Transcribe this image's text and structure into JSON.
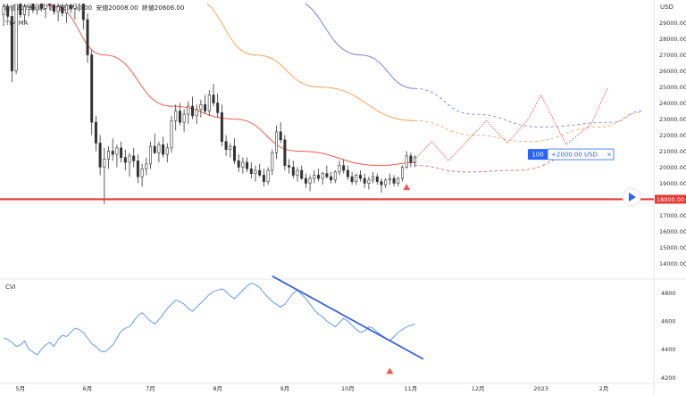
{
  "ohlc": {
    "open": "始値20295.00",
    "high": "高値20750.00",
    "low": "安値20008.00",
    "close": "終値20606.00"
  },
  "ma_label": "TIM MA",
  "cvi_label": "CVI",
  "currency": "USD",
  "position_tag": {
    "qty": "100",
    "value": "+2000.00 USD",
    "close": "×"
  },
  "support_label": "18000.00",
  "colors": {
    "up": "#333333",
    "down": "#333333",
    "ma_red": "#f05b4f",
    "ma_orange": "#f7a35c",
    "ma_blue": "#7b7fe0",
    "support": "#e53935",
    "cvi": "#4f8ef7",
    "trendline": "#3b5fd9",
    "marker": "#f05b4f",
    "tag_blue": "#2962ff"
  },
  "chart_data": {
    "type": "candlestick",
    "x_ticks": [
      "5月",
      "6月",
      "7月",
      "8月",
      "9月",
      "10月",
      "11月",
      "12月",
      "2023",
      "2月"
    ],
    "price_axis": {
      "ticks": [
        14000,
        15000,
        16000,
        17000,
        18000,
        19000,
        20000,
        21000,
        22000,
        23000,
        24000,
        25000,
        26000,
        27000,
        28000,
        29000
      ],
      "labels": [
        "14000.00",
        "15000.00",
        "16000.00",
        "17000.00",
        "18000.00",
        "19000.00",
        "20000.00",
        "21000.00",
        "22000.00",
        "23000.00",
        "24000.00",
        "25000.00",
        "26000.00",
        "27000.00",
        "28000.00",
        "29000.00"
      ],
      "ylim": [
        13300,
        30200
      ]
    },
    "support_level": 18000,
    "candles": [
      [
        0,
        29500,
        30500,
        28800,
        30000
      ],
      [
        1,
        30000,
        30600,
        29200,
        29400
      ],
      [
        2,
        29400,
        29800,
        25300,
        26000
      ],
      [
        3,
        26000,
        30400,
        25800,
        30200
      ],
      [
        4,
        30200,
        30800,
        29300,
        29500
      ],
      [
        5,
        29500,
        30200,
        29000,
        30000
      ],
      [
        6,
        30000,
        30900,
        29400,
        30400
      ],
      [
        7,
        30400,
        30700,
        29600,
        29800
      ],
      [
        8,
        29800,
        30800,
        29500,
        30600
      ],
      [
        9,
        30600,
        30900,
        29700,
        29900
      ],
      [
        10,
        29900,
        30600,
        29300,
        30300
      ],
      [
        11,
        30300,
        30800,
        29800,
        30100
      ],
      [
        12,
        30100,
        30700,
        29500,
        29700
      ],
      [
        13,
        29700,
        30400,
        29100,
        30000
      ],
      [
        14,
        30000,
        30600,
        29400,
        29600
      ],
      [
        15,
        29600,
        30300,
        29000,
        30100
      ],
      [
        16,
        30100,
        30700,
        29600,
        29900
      ],
      [
        17,
        29900,
        30500,
        29200,
        30200
      ],
      [
        18,
        30200,
        30900,
        29700,
        30400
      ],
      [
        19,
        30400,
        30800,
        28600,
        29200
      ],
      [
        20,
        29200,
        29600,
        26500,
        27000
      ],
      [
        21,
        27000,
        27300,
        22000,
        22800
      ],
      [
        22,
        22800,
        23200,
        21000,
        21500
      ],
      [
        23,
        21500,
        22000,
        19500,
        20000
      ],
      [
        24,
        20000,
        21200,
        17700,
        20500
      ],
      [
        25,
        20500,
        21300,
        19900,
        21000
      ],
      [
        26,
        21000,
        21800,
        20400,
        20800
      ],
      [
        27,
        20800,
        21400,
        20000,
        21200
      ],
      [
        28,
        21200,
        21600,
        20300,
        20600
      ],
      [
        29,
        20600,
        21100,
        19800,
        20300
      ],
      [
        30,
        20300,
        20900,
        19400,
        20700
      ],
      [
        31,
        20700,
        21200,
        20000,
        20400
      ],
      [
        32,
        20400,
        20800,
        19000,
        19400
      ],
      [
        33,
        19400,
        20200,
        18800,
        19900
      ],
      [
        34,
        19900,
        20600,
        19500,
        20200
      ],
      [
        35,
        20200,
        21600,
        19900,
        21300
      ],
      [
        36,
        21300,
        22100,
        20800,
        20900
      ],
      [
        37,
        20900,
        21600,
        20300,
        21400
      ],
      [
        38,
        21400,
        21900,
        20600,
        20800
      ],
      [
        39,
        20800,
        21500,
        20300,
        21200
      ],
      [
        40,
        21200,
        23200,
        20900,
        22900
      ],
      [
        41,
        22900,
        23900,
        22300,
        23500
      ],
      [
        42,
        23500,
        24000,
        22600,
        22800
      ],
      [
        43,
        22800,
        23600,
        22200,
        23300
      ],
      [
        44,
        23300,
        24100,
        22700,
        23800
      ],
      [
        45,
        23800,
        24400,
        23000,
        23200
      ],
      [
        46,
        23200,
        23900,
        22700,
        23600
      ],
      [
        47,
        23600,
        24200,
        23100,
        23900
      ],
      [
        48,
        23900,
        24500,
        23300,
        23500
      ],
      [
        49,
        23500,
        24800,
        23200,
        24500
      ],
      [
        50,
        24500,
        25200,
        23800,
        24000
      ],
      [
        51,
        24000,
        24600,
        23100,
        23400
      ],
      [
        52,
        23400,
        23900,
        21300,
        21600
      ],
      [
        53,
        21600,
        22000,
        20700,
        21100
      ],
      [
        54,
        21100,
        21500,
        20600,
        21300
      ],
      [
        55,
        21300,
        21800,
        20200,
        20400
      ],
      [
        56,
        20400,
        20800,
        19700,
        20000
      ],
      [
        57,
        20000,
        20600,
        19600,
        20300
      ],
      [
        58,
        20300,
        20600,
        19700,
        19900
      ],
      [
        59,
        19900,
        20300,
        19300,
        19600
      ],
      [
        60,
        19600,
        20100,
        19100,
        19800
      ],
      [
        61,
        19800,
        20200,
        19400,
        19500
      ],
      [
        62,
        19500,
        19900,
        18800,
        19100
      ],
      [
        63,
        19100,
        20000,
        18900,
        19800
      ],
      [
        64,
        19800,
        21100,
        19500,
        20900
      ],
      [
        65,
        20900,
        22600,
        20500,
        22200
      ],
      [
        66,
        22200,
        22800,
        21500,
        21700
      ],
      [
        67,
        21700,
        22000,
        19800,
        20100
      ],
      [
        68,
        20100,
        20500,
        19600,
        20000
      ],
      [
        69,
        20000,
        20400,
        19300,
        19500
      ],
      [
        70,
        19500,
        20000,
        19100,
        19800
      ],
      [
        71,
        19800,
        20100,
        19200,
        19300
      ],
      [
        72,
        19300,
        19600,
        18700,
        19000
      ],
      [
        73,
        19000,
        19500,
        18500,
        19300
      ],
      [
        74,
        19300,
        19800,
        19000,
        19500
      ],
      [
        75,
        19500,
        19900,
        19100,
        19300
      ],
      [
        76,
        19300,
        19700,
        18900,
        19600
      ],
      [
        77,
        19600,
        20100,
        19300,
        19400
      ],
      [
        78,
        19400,
        19700,
        19000,
        19200
      ],
      [
        79,
        19200,
        19800,
        19000,
        19700
      ],
      [
        80,
        19700,
        20400,
        19500,
        20100
      ],
      [
        81,
        20100,
        20500,
        19600,
        19800
      ],
      [
        82,
        19800,
        20100,
        19200,
        19400
      ],
      [
        83,
        19400,
        19700,
        18900,
        19100
      ],
      [
        84,
        19100,
        19600,
        18900,
        19500
      ],
      [
        85,
        19500,
        19800,
        19100,
        19300
      ],
      [
        86,
        19300,
        19600,
        18700,
        19000
      ],
      [
        87,
        19000,
        19400,
        18600,
        19200
      ],
      [
        88,
        19200,
        19700,
        19000,
        19400
      ],
      [
        89,
        19400,
        19600,
        18900,
        19100
      ],
      [
        90,
        19100,
        19300,
        18400,
        18900
      ],
      [
        91,
        18900,
        19300,
        18700,
        19200
      ],
      [
        92,
        19200,
        19600,
        18900,
        19300
      ],
      [
        93,
        19300,
        19500,
        18800,
        19000
      ],
      [
        94,
        19000,
        19400,
        18800,
        19300
      ],
      [
        95,
        19300,
        20100,
        19100,
        20000
      ],
      [
        96,
        20000,
        21000,
        19900,
        20700
      ],
      [
        97,
        20700,
        20900,
        20000,
        20300
      ],
      [
        98,
        20300,
        20750,
        20008,
        20606
      ]
    ],
    "ma_red": [
      [
        1,
        32000
      ],
      [
        12,
        30000
      ],
      [
        24,
        27000
      ],
      [
        40,
        23800
      ],
      [
        55,
        23000
      ],
      [
        70,
        21000
      ],
      [
        90,
        20100
      ],
      [
        98,
        20300
      ]
    ],
    "ma_orange": [
      [
        45,
        30500
      ],
      [
        60,
        27000
      ],
      [
        75,
        25000
      ],
      [
        98,
        22900
      ]
    ],
    "ma_blue": [
      [
        68,
        30500
      ],
      [
        85,
        27000
      ],
      [
        98,
        24900
      ]
    ],
    "projections": {
      "red_dashed": [
        [
          98,
          20100
        ],
        [
          110,
          19700
        ],
        [
          122,
          19800
        ],
        [
          140,
          21100
        ]
      ],
      "orange_dashed": [
        [
          98,
          22900
        ],
        [
          112,
          22000
        ],
        [
          125,
          21600
        ],
        [
          142,
          22500
        ],
        [
          152,
          23400
        ]
      ],
      "blue_dashed": [
        [
          98,
          24900
        ],
        [
          112,
          23300
        ],
        [
          128,
          22500
        ],
        [
          145,
          22800
        ],
        [
          152,
          23500
        ]
      ],
      "red_dotted_path": [
        [
          98,
          20500
        ],
        [
          102,
          21600
        ],
        [
          106,
          20400
        ],
        [
          115,
          22900
        ],
        [
          120,
          21500
        ],
        [
          125,
          23000
        ],
        [
          128,
          24500
        ],
        [
          134,
          21400
        ],
        [
          140,
          22700
        ],
        [
          144,
          25000
        ]
      ]
    },
    "cvi": {
      "ticks": [
        4200,
        4400,
        4600,
        4800
      ],
      "labels": [
        "4200",
        "4400",
        "4600",
        "4800"
      ],
      "ylim": [
        4170,
        4880
      ],
      "values": [
        4480,
        4470,
        4450,
        4420,
        4430,
        4460,
        4400,
        4380,
        4360,
        4400,
        4430,
        4450,
        4420,
        4470,
        4500,
        4490,
        4520,
        4550,
        4540,
        4520,
        4480,
        4440,
        4420,
        4390,
        4380,
        4400,
        4430,
        4480,
        4530,
        4550,
        4560,
        4600,
        4640,
        4660,
        4630,
        4600,
        4580,
        4610,
        4650,
        4690,
        4720,
        4750,
        4740,
        4720,
        4690,
        4670,
        4700,
        4730,
        4760,
        4790,
        4810,
        4820,
        4830,
        4810,
        4780,
        4760,
        4790,
        4820,
        4850,
        4870,
        4860,
        4840,
        4800,
        4770,
        4740,
        4720,
        4700,
        4720,
        4760,
        4800,
        4820,
        4790,
        4760,
        4720,
        4680,
        4650,
        4630,
        4600,
        4580,
        4560,
        4590,
        4620,
        4600,
        4570,
        4540,
        4520,
        4530,
        4560,
        4550,
        4520,
        4500,
        4480,
        4460,
        4490,
        4520,
        4540,
        4560,
        4570,
        4580
      ],
      "trendline": [
        [
          64,
          4920
        ],
        [
          100,
          4330
        ]
      ]
    }
  }
}
